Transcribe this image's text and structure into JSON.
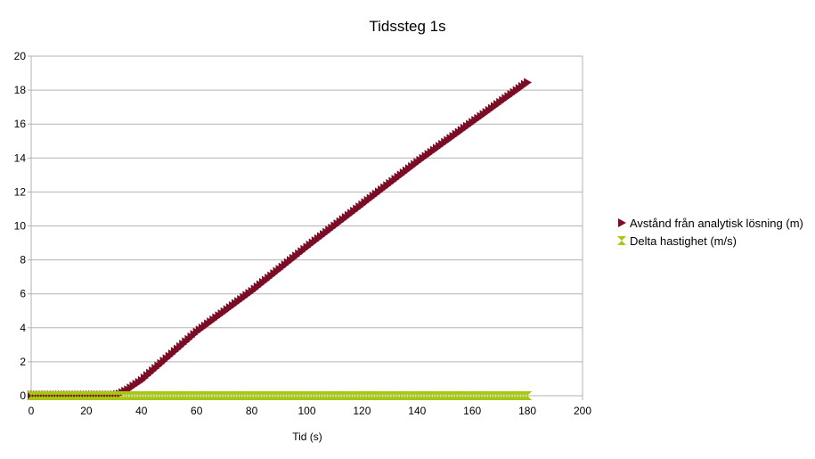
{
  "chart_data": {
    "type": "scatter",
    "title": "Tidssteg 1s",
    "xlabel": "Tid (s)",
    "ylabel": "",
    "xlim": [
      0,
      200
    ],
    "ylim": [
      0,
      20
    ],
    "x_ticks": [
      "0",
      "20",
      "40",
      "60",
      "80",
      "100",
      "120",
      "140",
      "160",
      "180",
      "200"
    ],
    "y_ticks": [
      "0",
      "2",
      "4",
      "6",
      "8",
      "10",
      "12",
      "14",
      "16",
      "18",
      "20"
    ],
    "grid": "horizontal",
    "legend_position": "right",
    "series": [
      {
        "name": "Avstånd från analytisk lösning (m)",
        "color": "#7b0c26",
        "marker": "triangle-right",
        "points_description": "flat near 0 from 0 to ~32 s, then linear rise",
        "x": [
          0,
          10,
          20,
          30,
          32,
          35,
          40,
          60,
          80,
          100,
          120,
          140,
          160,
          180
        ],
        "y": [
          0.05,
          0.05,
          0.05,
          0.05,
          0.1,
          0.35,
          0.9,
          3.75,
          6.15,
          8.75,
          11.25,
          13.75,
          16.1,
          18.45
        ]
      },
      {
        "name": "Delta hastighet (m/s)",
        "color": "#a6c80f",
        "marker": "hourglass",
        "x": [
          0,
          180
        ],
        "y": [
          0,
          0
        ]
      }
    ]
  }
}
